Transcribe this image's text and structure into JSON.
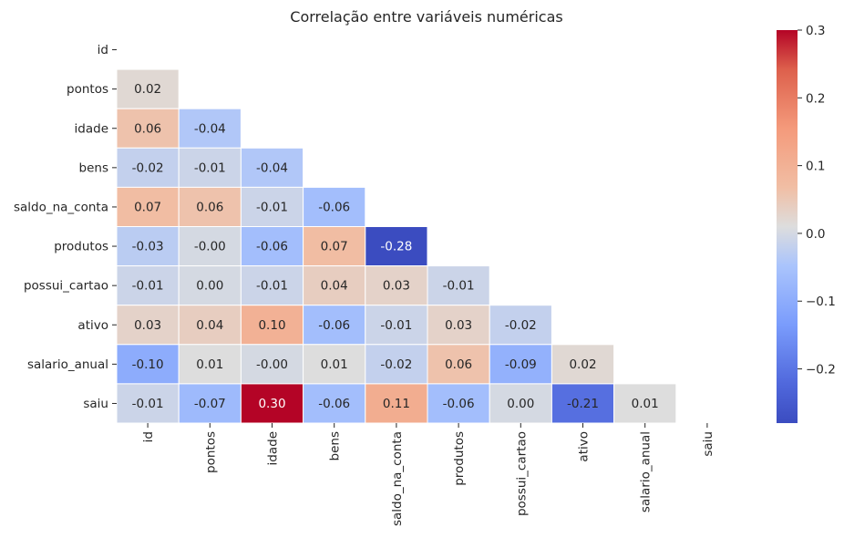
{
  "chart_data": {
    "type": "heatmap",
    "title": "Correlação entre variáveis numéricas",
    "variables": [
      "id",
      "pontos",
      "idade",
      "bens",
      "saldo_na_conta",
      "produtos",
      "possui_cartao",
      "ativo",
      "salario_anual",
      "saiu"
    ],
    "matrix": [
      [
        null,
        null,
        null,
        null,
        null,
        null,
        null,
        null,
        null,
        null
      ],
      [
        0.02,
        null,
        null,
        null,
        null,
        null,
        null,
        null,
        null,
        null
      ],
      [
        0.06,
        -0.04,
        null,
        null,
        null,
        null,
        null,
        null,
        null,
        null
      ],
      [
        -0.02,
        -0.01,
        -0.04,
        null,
        null,
        null,
        null,
        null,
        null,
        null
      ],
      [
        0.07,
        0.06,
        -0.01,
        -0.06,
        null,
        null,
        null,
        null,
        null,
        null
      ],
      [
        -0.03,
        -0.0,
        -0.06,
        0.07,
        -0.28,
        null,
        null,
        null,
        null,
        null
      ],
      [
        -0.01,
        0.0,
        -0.01,
        0.04,
        0.03,
        -0.01,
        null,
        null,
        null,
        null
      ],
      [
        0.03,
        0.04,
        0.1,
        -0.06,
        -0.01,
        0.03,
        -0.02,
        null,
        null,
        null
      ],
      [
        -0.1,
        0.01,
        -0.0,
        0.01,
        -0.02,
        0.06,
        -0.09,
        0.02,
        null,
        null
      ],
      [
        -0.01,
        -0.07,
        0.3,
        -0.06,
        0.11,
        -0.06,
        0.0,
        -0.21,
        0.01,
        null
      ]
    ],
    "colormap": "coolwarm",
    "vmin": -0.28,
    "vmax": 0.3,
    "colorbar_ticks": [
      0.3,
      0.2,
      0.1,
      0.0,
      -0.1,
      -0.2
    ],
    "colorbar_tick_labels": [
      "0.3",
      "0.2",
      "0.1",
      "0.0",
      "−0.1",
      "−0.2"
    ],
    "annotation_format": "2 decimals",
    "masked": "upper triangle incl. diagonal"
  }
}
